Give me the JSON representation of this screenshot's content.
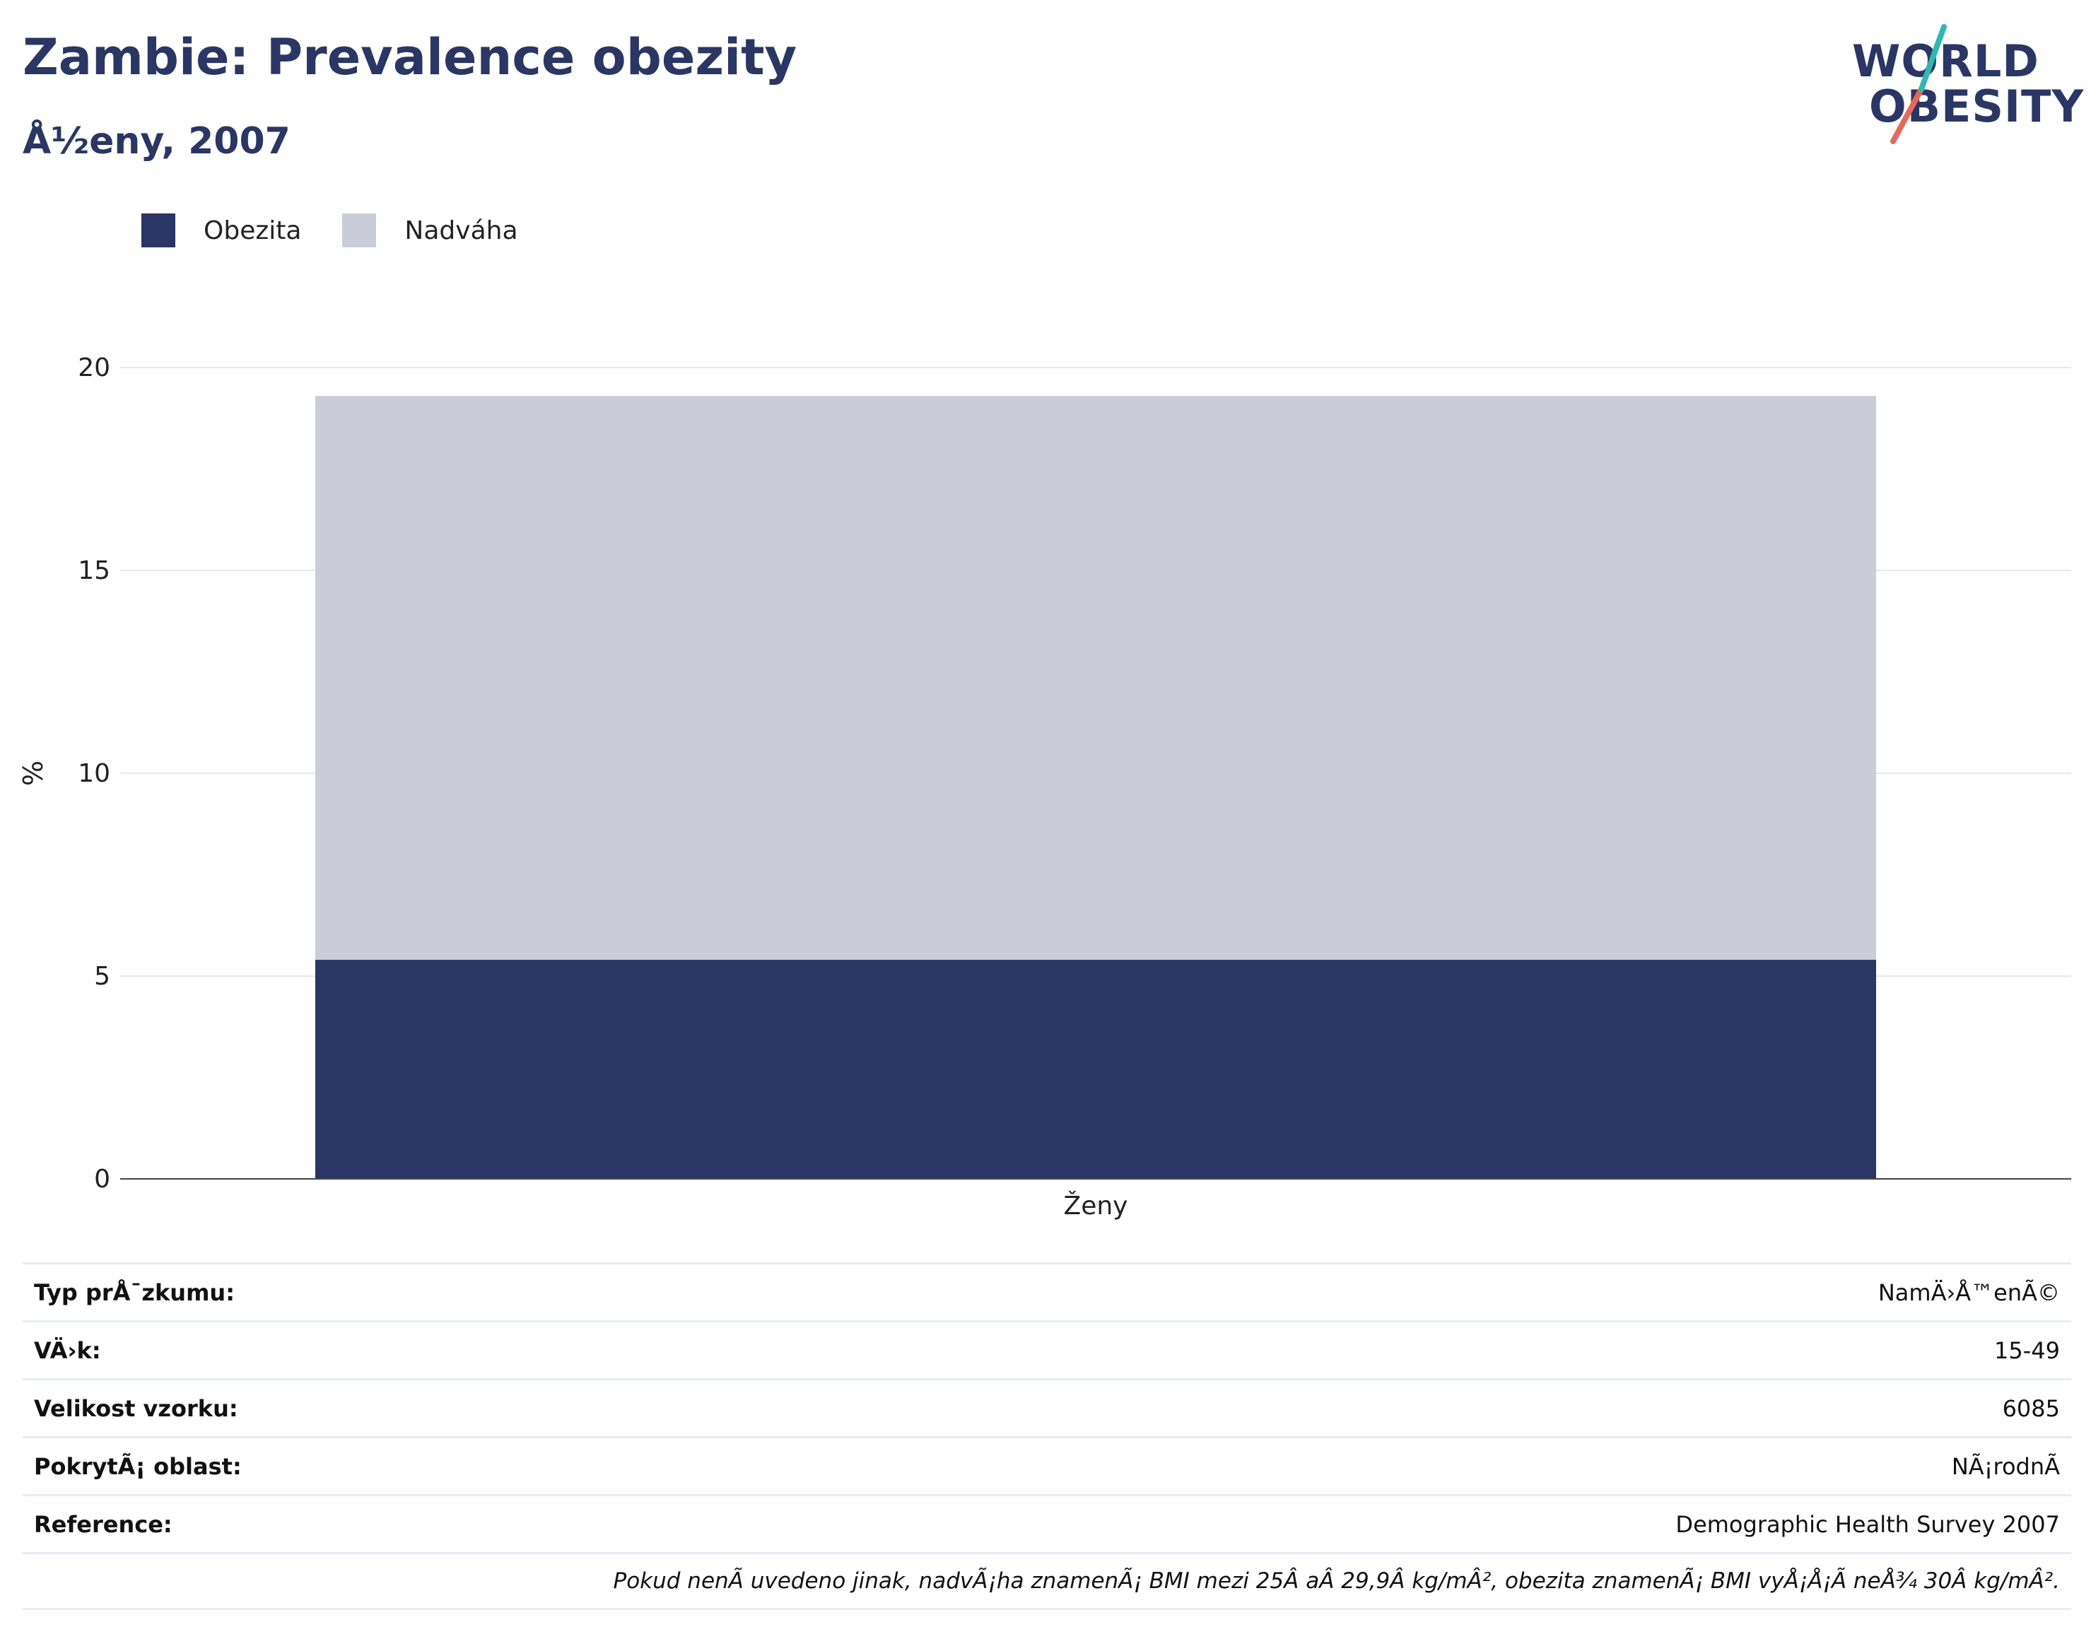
{
  "header": {
    "title": "Zambie: Prevalence obezity",
    "subtitle": "Å½eny, 2007"
  },
  "logo": {
    "line1": "WORLD",
    "line2": "OBESITY"
  },
  "colors": {
    "obesity": "#2a3663",
    "overweight": "#cacdd8",
    "text": "#2a3663"
  },
  "chart_data": {
    "type": "bar",
    "stacked": true,
    "categories": [
      "Ženy"
    ],
    "series": [
      {
        "name": "Obezita",
        "values": [
          5.4
        ]
      },
      {
        "name": "Nadváha",
        "values": [
          13.9
        ]
      }
    ],
    "ylabel": "%",
    "xlabel": "",
    "ylim": [
      0,
      20
    ],
    "yticks": [
      0,
      5,
      10,
      15,
      20
    ],
    "grid": true,
    "legend": "top-left"
  },
  "info": {
    "rows": [
      {
        "key": "Typ prÅ¯zkumu:",
        "value": "NamÄ›Å™enÃ©"
      },
      {
        "key": "VÄ›k:",
        "value": "15-49"
      },
      {
        "key": "Velikost vzorku:",
        "value": "6085"
      },
      {
        "key": "PokrytÃ¡ oblast:",
        "value": "NÃ¡rodnÃ"
      },
      {
        "key": "Reference:",
        "value": "Demographic Health Survey 2007"
      }
    ],
    "note": "Pokud nenÃ uvedeno jinak, nadvÃ¡ha znamenÃ¡ BMI mezi 25Â aÂ 29,9Â kg/mÂ², obezita znamenÃ¡ BMI vyÅ¡Å¡Ã neÅ¾ 30Â kg/mÂ²."
  }
}
